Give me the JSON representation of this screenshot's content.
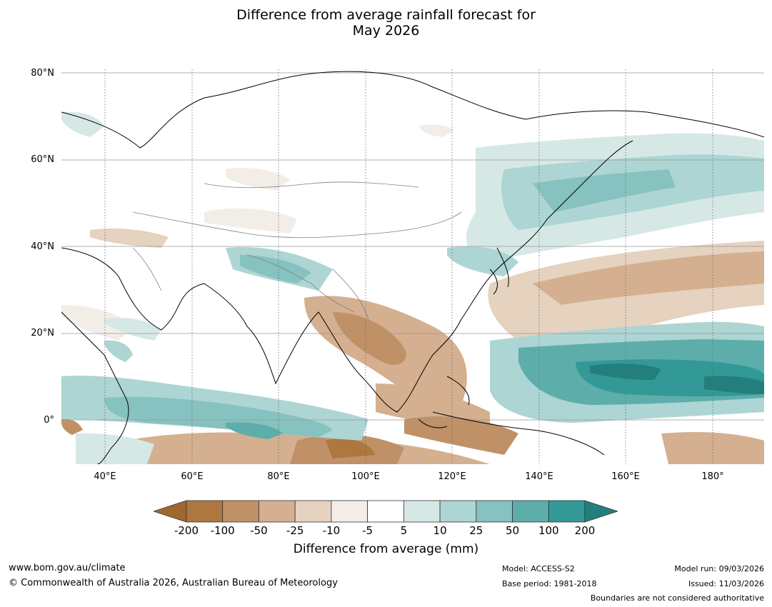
{
  "title": {
    "line1": "Difference from average rainfall forecast for",
    "line2": "May 2026"
  },
  "map": {
    "lat_labels": [
      "80°N",
      "60°N",
      "40°N",
      "20°N",
      "0°"
    ],
    "lon_labels": [
      "40°E",
      "60°E",
      "80°E",
      "100°E",
      "120°E",
      "140°E",
      "160°E",
      "180°"
    ],
    "lat_range": [
      -10,
      81
    ],
    "lon_range": [
      30,
      192
    ]
  },
  "colorbar": {
    "ticks": [
      "-200",
      "-100",
      "-50",
      "-25",
      "-10",
      "-5",
      "5",
      "10",
      "25",
      "50",
      "100",
      "200"
    ],
    "colors": [
      "#a0672f",
      "#ad773f",
      "#c09167",
      "#d4b090",
      "#e5d2bf",
      "#f2ede7",
      "#ffffff",
      "#d6e8e6",
      "#add5d3",
      "#86c2bf",
      "#5daeab",
      "#339996",
      "#237f7c"
    ],
    "title": "Difference from average (mm)"
  },
  "footer": {
    "url": "www.bom.gov.au/climate",
    "copyright": "© Commonwealth of Australia 2026, Australian Bureau of Meteorology",
    "model": "Model: ACCESS-S2",
    "base_period": "Base period: 1981-2018",
    "model_run": "Model run: 09/03/2026",
    "issued": "Issued: 11/03/2026",
    "boundaries": "Boundaries are not considered authoritative"
  }
}
